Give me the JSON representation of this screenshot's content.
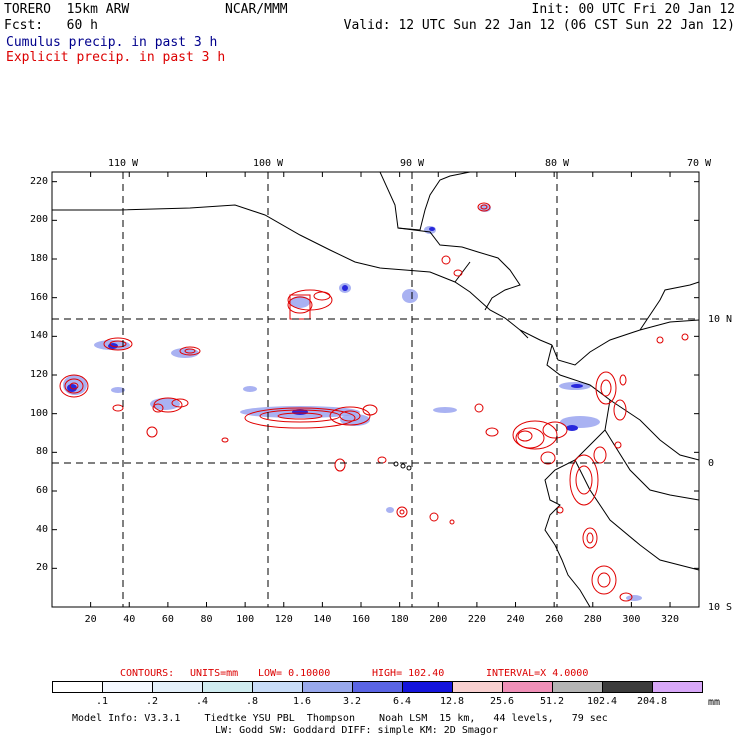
{
  "header": {
    "model": "TORERO  15km ARW",
    "center": "NCAR/MMM",
    "init": "Init: 00 UTC Fri 20 Jan 12",
    "fcst": "Fcst:   60 h",
    "valid": "Valid: 12 UTC Sun 22 Jan 12 (06 CST Sun 22 Jan 12)",
    "cumulus": "Cumulus precip. in past 3 h",
    "explicit": "Explicit precip. in past 3 h"
  },
  "colors": {
    "cumulus_title": "#00008c",
    "explicit_title": "#dc0000",
    "grid": "#000000",
    "coast": "#000000",
    "contour": "#e00000"
  },
  "map": {
    "top_lon_labels": [
      "110 W",
      "100 W",
      "90 W",
      "80 W",
      "70 W"
    ],
    "right_lat_labels": [
      "10 N",
      "0",
      "10 S"
    ],
    "y_ticks": [
      "220",
      "200",
      "180",
      "160",
      "140",
      "120",
      "100",
      "80",
      "60",
      "40",
      "20"
    ],
    "x_ticks": [
      "20",
      "40",
      "60",
      "80",
      "100",
      "120",
      "140",
      "160",
      "180",
      "200",
      "220",
      "240",
      "260",
      "280",
      "300",
      "320"
    ]
  },
  "contours": {
    "label": "CONTOURS:",
    "units": "UNITS=mm",
    "low": "LOW= 0.10000",
    "high": "HIGH= 102.40",
    "interval": "INTERVAL=X 4.0000"
  },
  "colorbar": {
    "labels": [
      ".1",
      ".2",
      ".4",
      ".8",
      "1.6",
      "3.2",
      "6.4",
      "12.8",
      "25.6",
      "51.2",
      "102.4",
      "204.8"
    ],
    "unit": "mm",
    "colors": [
      "#ffffff",
      "#f4f8ff",
      "#e4f0fa",
      "#d0ecf0",
      "#c8dcf8",
      "#98a8ec",
      "#5a64e4",
      "#1414dc",
      "#f8d0d0",
      "#f090b8",
      "#b4b4b4",
      "#3c3c3c",
      "#d8a8f8"
    ]
  },
  "footer": {
    "line1": "Model Info: V3.3.1    Tiedtke YSU PBL  Thompson    Noah LSM  15 km,   44 levels,   79 sec",
    "line2": "LW: Godd SW: Goddard DIFF: simple KM: 2D Smagor"
  }
}
